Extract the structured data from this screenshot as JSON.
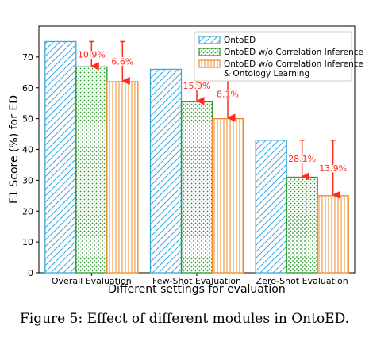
{
  "chart_data": {
    "type": "bar",
    "categories": [
      "Overall Evaluation",
      "Few-Shot Evaluation",
      "Zero-Shot Evaluation"
    ],
    "series": [
      {
        "name": "OntoED",
        "values": [
          75,
          66,
          43
        ],
        "color": "#3fa9dc",
        "pattern": "diagonal-hatch"
      },
      {
        "name": "OntoED w/o Correlation Inference",
        "values": [
          66.8,
          55.5,
          31
        ],
        "color": "#2a9a2a",
        "pattern": "dots"
      },
      {
        "name": "OntoED w/o Correlation Inference\n & Ontology Learning",
        "values": [
          62,
          50,
          25
        ],
        "color": "#f08a24",
        "pattern": "vertical-hatch"
      }
    ],
    "drops": [
      {
        "category": 0,
        "series": 1,
        "label": "10.9%"
      },
      {
        "category": 0,
        "series": 2,
        "label": "6.6%"
      },
      {
        "category": 1,
        "series": 1,
        "label": "15.9%"
      },
      {
        "category": 1,
        "series": 2,
        "label": "8.1%"
      },
      {
        "category": 2,
        "series": 1,
        "label": "28.1%"
      },
      {
        "category": 2,
        "series": 2,
        "label": "13.9%"
      }
    ],
    "annotation_color": "#ff2a1a",
    "xlabel": "Different settings for evaluation",
    "ylabel": "F1 Score (%) for ED",
    "ylim": [
      0,
      80
    ],
    "yticks": [
      0,
      10,
      20,
      30,
      40,
      50,
      60,
      70
    ],
    "grid": false,
    "legend_position": "top-right"
  },
  "caption": "Figure 5: Effect of different modules in OntoED."
}
